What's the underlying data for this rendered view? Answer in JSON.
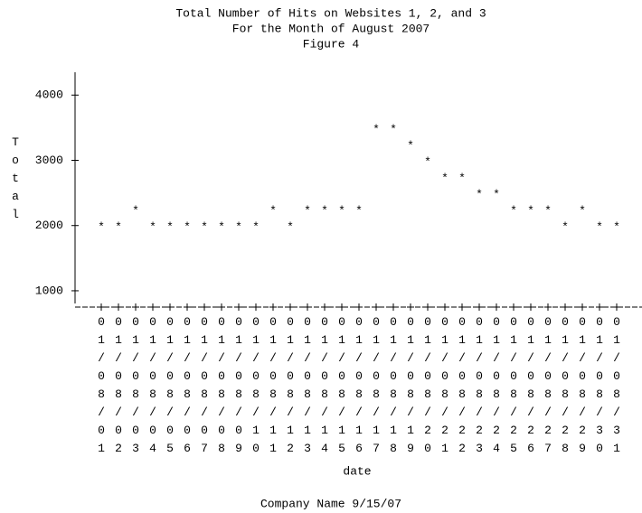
{
  "chart_data": {
    "type": "scatter",
    "title": "Total Number of Hits on Websites 1, 2, and 3",
    "subtitle": "For the Month of August 2007",
    "figure_label": "Figure 4",
    "y_label": "Total",
    "x_label": "date",
    "footnote": "Company Name  9/15/07",
    "marker": "*",
    "color": "#000000",
    "categories": [
      "01/08/01",
      "01/08/02",
      "01/08/03",
      "01/08/04",
      "01/08/05",
      "01/08/06",
      "01/08/07",
      "01/08/08",
      "01/08/09",
      "01/08/10",
      "01/08/11",
      "01/08/12",
      "01/08/13",
      "01/08/14",
      "01/08/15",
      "01/08/16",
      "01/08/17",
      "01/08/18",
      "01/08/19",
      "01/08/20",
      "01/08/21",
      "01/08/22",
      "01/08/23",
      "01/08/24",
      "01/08/25",
      "01/08/26",
      "01/08/27",
      "01/08/28",
      "01/08/29",
      "01/08/30",
      "01/08/31"
    ],
    "values": [
      2000,
      2000,
      2250,
      2000,
      2000,
      2000,
      2000,
      2000,
      2000,
      2000,
      2250,
      2000,
      2250,
      2250,
      2250,
      2250,
      3500,
      3500,
      3250,
      3000,
      2750,
      2750,
      2500,
      2500,
      2250,
      2250,
      2250,
      2000,
      2250,
      2000,
      2000
    ],
    "ylim": [
      750,
      4350
    ],
    "yticks": [
      1000,
      2000,
      3000,
      4000
    ]
  }
}
